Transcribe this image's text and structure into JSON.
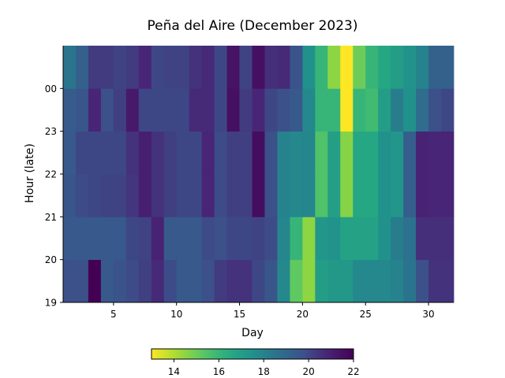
{
  "chart_data": {
    "type": "heatmap",
    "title": "Peña del Aire (December 2023)",
    "xlabel": "Day",
    "ylabel": "Hour (late)",
    "x_range": [
      1,
      32
    ],
    "x_ticks": [
      5,
      10,
      15,
      20,
      25,
      30
    ],
    "y_rows_bottom_to_top": [
      "19",
      "20",
      "21",
      "22",
      "23",
      "00"
    ],
    "y_tick_labels_bottom_to_top": [
      "19",
      "20",
      "21",
      "22",
      "23",
      "00"
    ],
    "days": [
      1,
      2,
      3,
      4,
      5,
      6,
      7,
      8,
      9,
      10,
      11,
      12,
      13,
      14,
      15,
      16,
      17,
      18,
      19,
      20,
      21,
      22,
      23,
      24,
      25,
      26,
      27,
      28,
      29,
      30,
      31
    ],
    "colorbar": {
      "min": 13,
      "max": 22,
      "ticks": [
        14,
        16,
        18,
        20,
        22
      ],
      "colormap": "viridis_r",
      "orientation": "horizontal"
    },
    "values_by_hour": {
      "19": [
        19.8,
        19.8,
        22.0,
        19.5,
        19.7,
        19.9,
        20.2,
        20.7,
        19.9,
        19.5,
        19.5,
        19.8,
        20.3,
        20.5,
        20.5,
        20.0,
        19.6,
        17.8,
        15.2,
        14.5,
        17.0,
        17.2,
        17.2,
        17.8,
        17.8,
        17.8,
        18.0,
        18.5,
        19.8,
        20.5,
        20.5
      ],
      "20": [
        19.5,
        19.5,
        19.5,
        19.5,
        19.5,
        20.0,
        20.1,
        20.9,
        19.5,
        19.5,
        19.5,
        19.9,
        19.8,
        20.0,
        20.0,
        20.1,
        19.9,
        17.9,
        16.0,
        14.5,
        17.3,
        17.4,
        16.8,
        16.8,
        16.8,
        17.5,
        18.2,
        18.6,
        20.6,
        20.6,
        20.6
      ],
      "21": [
        19.6,
        19.9,
        20.0,
        20.1,
        20.1,
        20.4,
        21.0,
        20.5,
        20.2,
        20.0,
        20.0,
        20.8,
        19.9,
        20.2,
        20.2,
        21.6,
        19.8,
        18.0,
        17.8,
        17.9,
        15.5,
        16.9,
        14.6,
        16.6,
        16.6,
        17.5,
        17.3,
        19.3,
        20.9,
        20.8,
        20.8
      ],
      "22": [
        19.5,
        20.0,
        20.0,
        20.0,
        20.0,
        20.5,
        21.0,
        20.5,
        20.2,
        20.0,
        20.0,
        20.8,
        19.9,
        20.2,
        20.2,
        21.6,
        19.8,
        18.0,
        17.8,
        17.9,
        15.5,
        16.9,
        14.6,
        16.6,
        16.6,
        17.5,
        17.3,
        19.3,
        20.9,
        20.8,
        20.8
      ],
      "23": [
        19.4,
        19.6,
        20.8,
        19.8,
        20.2,
        21.2,
        20.0,
        20.0,
        20.0,
        20.0,
        20.7,
        20.7,
        20.0,
        21.5,
        20.3,
        20.8,
        20.0,
        19.8,
        19.5,
        17.8,
        16.0,
        16.0,
        13.0,
        16.0,
        15.8,
        17.0,
        18.2,
        17.5,
        18.8,
        19.8,
        20.0
      ],
      "00": [
        18.5,
        19.2,
        20.3,
        20.3,
        20.1,
        20.3,
        20.8,
        20.0,
        20.1,
        20.1,
        20.5,
        20.7,
        20.0,
        21.4,
        20.1,
        21.5,
        20.6,
        20.7,
        19.7,
        17.5,
        16.0,
        14.5,
        13.0,
        15.0,
        16.0,
        16.6,
        17.0,
        17.4,
        18.0,
        19.2,
        19.2
      ]
    }
  }
}
